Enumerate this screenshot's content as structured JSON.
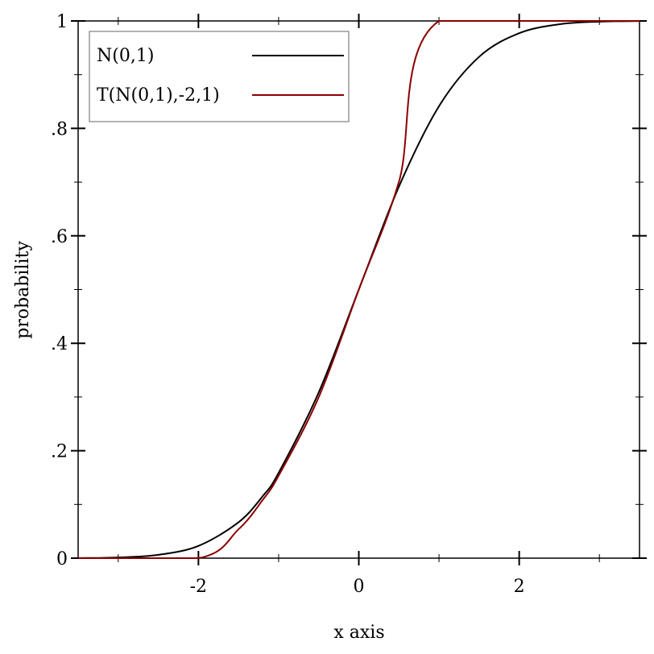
{
  "chart_data": {
    "type": "line",
    "title": "",
    "xlabel": "x axis",
    "ylabel": "probability",
    "xlim": [
      -3.5,
      3.5
    ],
    "ylim": [
      0,
      1
    ],
    "x_ticks": [
      {
        "value": -2,
        "label": "-2"
      },
      {
        "value": 0,
        "label": "0"
      },
      {
        "value": 2,
        "label": "2"
      }
    ],
    "x_minor_ticks": [
      -3,
      -1,
      1,
      3
    ],
    "y_ticks": [
      {
        "value": 0,
        "label": "0"
      },
      {
        "value": 0.2,
        "label": ".2"
      },
      {
        "value": 0.4,
        "label": ".4"
      },
      {
        "value": 0.6,
        "label": ".6"
      },
      {
        "value": 0.8,
        "label": ".8"
      },
      {
        "value": 1,
        "label": "1"
      }
    ],
    "y_minor_ticks": [
      0.1,
      0.3,
      0.5,
      0.7,
      0.9
    ],
    "grid": false,
    "legend_position": "top-left",
    "series": [
      {
        "name": "N(0,1)",
        "color": "#000000",
        "x": [
          -3.5,
          -3.0,
          -2.5,
          -2.0,
          -1.5,
          -1.2,
          -1.0,
          -0.5,
          0.0,
          0.5,
          1.0,
          1.5,
          2.0,
          2.5,
          3.0,
          3.5
        ],
        "y": [
          0.0002,
          0.0013,
          0.0062,
          0.0228,
          0.0668,
          0.1151,
          0.1587,
          0.3085,
          0.5,
          0.6915,
          0.8413,
          0.9332,
          0.9772,
          0.9938,
          0.9987,
          0.9998
        ]
      },
      {
        "name": "T(N(0,1),-2,1)",
        "color": "#8b0000",
        "x": [
          -3.5,
          -2.0,
          -1.5,
          -1.2,
          -1.0,
          -0.5,
          0.0,
          0.5,
          1.0,
          3.5
        ],
        "y": [
          0,
          0,
          0.0537,
          0.1081,
          0.1535,
          0.2996,
          0.5,
          0.7004,
          1.0,
          1.0
        ]
      }
    ]
  }
}
